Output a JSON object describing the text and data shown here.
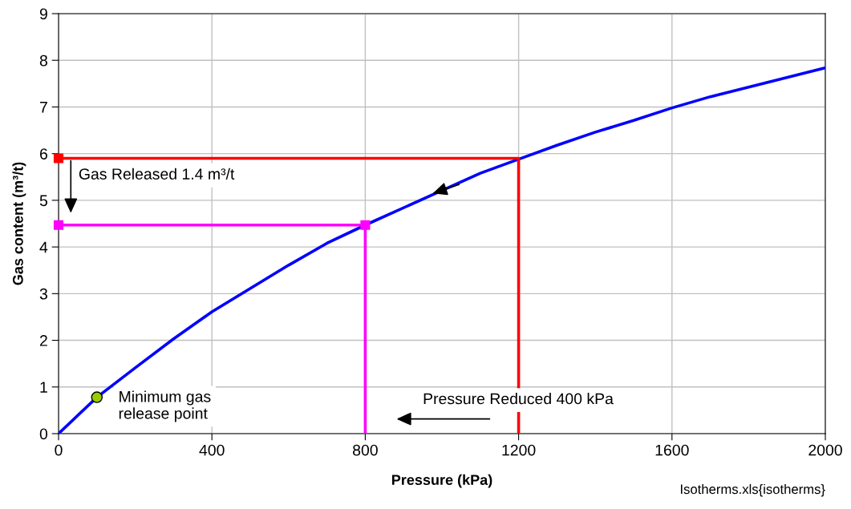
{
  "chart_data": {
    "type": "line",
    "xlabel": "Pressure (kPa)",
    "ylabel": "Gas content (m³/t)",
    "xlim": [
      0,
      2000
    ],
    "ylim": [
      0,
      9
    ],
    "xticks": [
      0,
      400,
      800,
      1200,
      1600,
      2000
    ],
    "yticks": [
      0,
      1,
      2,
      3,
      4,
      5,
      6,
      7,
      8,
      9
    ],
    "grid": true,
    "series": [
      {
        "color": "#0000ff",
        "marker": "none",
        "x": [
          0,
          100,
          200,
          300,
          400,
          600,
          700,
          800,
          1100,
          1200,
          1300,
          1400,
          1500,
          1600,
          1700,
          2000
        ],
        "values": [
          0,
          0.78,
          1.41,
          2.03,
          2.61,
          3.61,
          4.08,
          4.47,
          5.58,
          5.88,
          6.18,
          6.46,
          6.71,
          6.98,
          7.22,
          7.84
        ]
      },
      {
        "color": "#ff0000",
        "marker": "none",
        "x": [
          0,
          1200,
          1200
        ],
        "values": [
          5.9,
          5.9,
          0
        ]
      },
      {
        "color": "#ff00ff",
        "marker": "none",
        "x": [
          0,
          800,
          800
        ],
        "values": [
          4.47,
          4.47,
          0
        ]
      },
      {
        "type": "scatter",
        "color": "#ff0000",
        "marker": "square",
        "x": [
          0
        ],
        "values": [
          5.9
        ]
      },
      {
        "type": "scatter",
        "color": "#ff00ff",
        "marker": "square",
        "x": [
          0,
          800
        ],
        "values": [
          4.47,
          4.47
        ]
      },
      {
        "type": "scatter",
        "color": "#99cc00",
        "marker": "circle",
        "x": [
          100
        ],
        "values": [
          0.78
        ]
      }
    ],
    "annotations": [
      "Gas Released 1.4 m³/t",
      "Pressure Reduced 400 kPa",
      "Minimum gas\nrelease point",
      "Isotherms.xls{isotherms}"
    ]
  }
}
